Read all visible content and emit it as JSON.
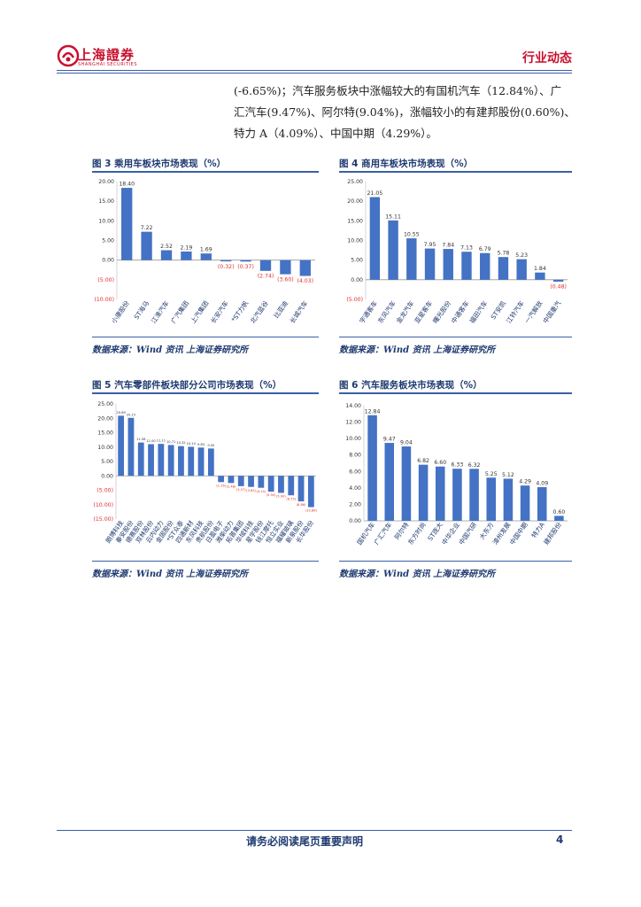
{
  "header": {
    "logo_text": "上海證券",
    "logo_sub": "SHANGHAI SECURITIES",
    "tag": "行业动态"
  },
  "paragraph": {
    "lines": [
      "(-6.65%)；汽车服务板块中涨幅较大的有国机汽车（12.84%）、广",
      "汇汽车(9.47%)、阿尔特(9.04%)，涨幅较小的有建邦股份(0.60%)、",
      "特力 A（4.09%）、中国中期（4.29%）。"
    ]
  },
  "figures": [
    {
      "title": "图 3 乘用车板块市场表现（%）",
      "source": "数据来源：Wind 资讯 上海证券研究所"
    },
    {
      "title": "图 4 商用车板块市场表现（%）",
      "source": "数据来源：Wind 资讯 上海证券研究所"
    },
    {
      "title": "图 5 汽车零部件板块部分公司市场表现（%）",
      "source": "数据来源：Wind 资讯 上海证券研究所"
    },
    {
      "title": "图 6 汽车服务板块市场表现（%）",
      "source": "数据来源：Wind 资讯 上海证券研究所"
    }
  ],
  "chart_data": [
    {
      "type": "bar",
      "title": "乘用车板块市场表现（%）",
      "categories": [
        "小康股份",
        "ST海马",
        "江淮汽车",
        "广汽集团",
        "上汽集团",
        "长安汽车",
        "*ST力帆",
        "北汽蓝谷",
        "比亚迪",
        "长城汽车"
      ],
      "values": [
        18.4,
        7.22,
        2.52,
        2.19,
        1.69,
        -0.32,
        -0.37,
        -2.74,
        -3.6,
        -4.03
      ],
      "labels": [
        "18.40",
        "7.22",
        "2.52",
        "2.19",
        "1.69",
        "(0.32)",
        "(0.37)",
        "(2.74)",
        "(3.60)",
        "(4.03)"
      ],
      "yticks": [
        "20.00",
        "15.00",
        "10.00",
        "5.00",
        "0.00",
        "(5.00)",
        "(10.00)"
      ],
      "ylim": [
        -10,
        20
      ],
      "colors": {
        "bar": "#4472c4",
        "negative_label": "#e03030"
      }
    },
    {
      "type": "bar",
      "title": "商用车板块市场表现（%）",
      "categories": [
        "宇通客车",
        "东风汽车",
        "金龙汽车",
        "亚星客车",
        "曙光股份",
        "中通客车",
        "福田汽车",
        "ST安凯",
        "江铃汽车",
        "一汽解放",
        "中国重汽"
      ],
      "values": [
        21.05,
        15.11,
        10.55,
        7.95,
        7.84,
        7.13,
        6.79,
        5.78,
        5.23,
        1.84,
        -0.48
      ],
      "labels": [
        "21.05",
        "15.11",
        "10.55",
        "7.95",
        "7.84",
        "7.13",
        "6.79",
        "5.78",
        "5.23",
        "1.84",
        "(0.48)"
      ],
      "yticks": [
        "25.00",
        "20.00",
        "15.00",
        "10.00",
        "5.00",
        "0.00",
        "(5.00)"
      ],
      "ylim": [
        -5,
        25
      ],
      "colors": {
        "bar": "#4472c4",
        "negative_label": "#e03030"
      }
    },
    {
      "type": "bar",
      "title": "汽车零部件板块部分公司市场表现（%）",
      "categories": [
        "朗博科技",
        "秦安股份",
        "德赛股份",
        "双林股份",
        "云内动力",
        "金固股份",
        "*ST众泰",
        "四通新材",
        "东风科技",
        "贵航股份",
        "日盈电子",
        "潍柴动力",
        "拓普集团",
        "华域科技",
        "星宇股份",
        "钱江摩托",
        "恒立实业",
        "福耀玻璃",
        "新泉股份",
        "长华股份"
      ],
      "values": [
        20.89,
        20.15,
        11.58,
        11.0,
        11.11,
        10.71,
        10.32,
        10.1,
        9.83,
        9.5,
        -2.16,
        -2.48,
        -3.57,
        -3.83,
        -4.14,
        -5.5,
        -5.9,
        -6.75,
        -8.86,
        -10.86
      ],
      "labels": [
        "20.89",
        "20.15",
        "11.58",
        "11.00",
        "11.11",
        "10.71",
        "10.32",
        "10.10",
        "9.83",
        "9.50",
        "(2.16)",
        "(2.48)",
        "(3.57)",
        "(3.83)",
        "(4.14)",
        "(5.50)",
        "(5.90)",
        "(6.75)",
        "(8.86)",
        "(10.86)"
      ],
      "yticks": [
        "25.00",
        "20.00",
        "15.00",
        "10.00",
        "5.00",
        "0.00",
        "(5.00)",
        "(10.00)",
        "(15.00)"
      ],
      "ylim": [
        -15,
        25
      ],
      "colors": {
        "bar": "#4472c4",
        "negative_label": "#e03030"
      }
    },
    {
      "type": "bar",
      "title": "汽车服务板块市场表现（%）",
      "categories": [
        "国机汽车",
        "广汇汽车",
        "阿尔特",
        "东方时尚",
        "ST庞大",
        "中华企业",
        "中国汽研",
        "大东方",
        "漳州发展",
        "中国中期",
        "特力A",
        "建邦股份"
      ],
      "values": [
        12.84,
        9.47,
        9.04,
        6.82,
        6.6,
        6.33,
        6.32,
        5.25,
        5.12,
        4.29,
        4.09,
        0.6
      ],
      "labels": [
        "12.84",
        "9.47",
        "9.04",
        "6.82",
        "6.60",
        "6.33",
        "6.32",
        "5.25",
        "5.12",
        "4.29",
        "4.09",
        "0.60"
      ],
      "yticks": [
        "14.00",
        "12.00",
        "10.00",
        "8.00",
        "6.00",
        "4.00",
        "2.00",
        "0.00"
      ],
      "ylim": [
        0,
        14
      ],
      "colors": {
        "bar": "#4472c4",
        "negative_label": "#e03030"
      }
    }
  ],
  "footer": {
    "notice": "请务必阅读尾页重要声明",
    "page": "4"
  }
}
